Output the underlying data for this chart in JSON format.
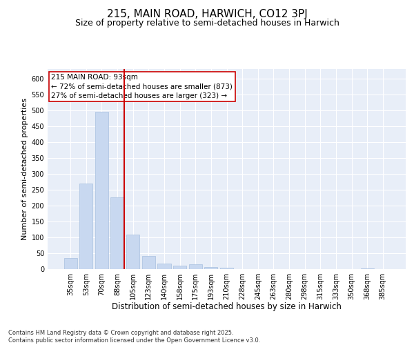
{
  "title1": "215, MAIN ROAD, HARWICH, CO12 3PJ",
  "title2": "Size of property relative to semi-detached houses in Harwich",
  "xlabel": "Distribution of semi-detached houses by size in Harwich",
  "ylabel": "Number of semi-detached properties",
  "categories": [
    "35sqm",
    "53sqm",
    "70sqm",
    "88sqm",
    "105sqm",
    "123sqm",
    "140sqm",
    "158sqm",
    "175sqm",
    "193sqm",
    "210sqm",
    "228sqm",
    "245sqm",
    "263sqm",
    "280sqm",
    "298sqm",
    "315sqm",
    "333sqm",
    "350sqm",
    "368sqm",
    "385sqm"
  ],
  "values": [
    35,
    270,
    495,
    225,
    108,
    41,
    17,
    10,
    16,
    7,
    5,
    0,
    0,
    0,
    0,
    0,
    0,
    0,
    0,
    2,
    0
  ],
  "bar_color": "#c8d8f0",
  "bar_edge_color": "#a8c0e0",
  "vline_color": "#cc0000",
  "vline_x_index": 3,
  "annotation_text": "215 MAIN ROAD: 93sqm\n← 72% of semi-detached houses are smaller (873)\n27% of semi-detached houses are larger (323) →",
  "annotation_box_facecolor": "#ffffff",
  "annotation_box_edgecolor": "#cc0000",
  "annotation_fontsize": 7.5,
  "ylim": [
    0,
    630
  ],
  "yticks": [
    0,
    50,
    100,
    150,
    200,
    250,
    300,
    350,
    400,
    450,
    500,
    550,
    600
  ],
  "background_color": "#e8eef8",
  "grid_color": "#ffffff",
  "title1_fontsize": 11,
  "title2_fontsize": 9,
  "xlabel_fontsize": 8.5,
  "ylabel_fontsize": 8,
  "tick_fontsize": 7,
  "footnote": "Contains HM Land Registry data © Crown copyright and database right 2025.\nContains public sector information licensed under the Open Government Licence v3.0.",
  "footnote_fontsize": 6
}
